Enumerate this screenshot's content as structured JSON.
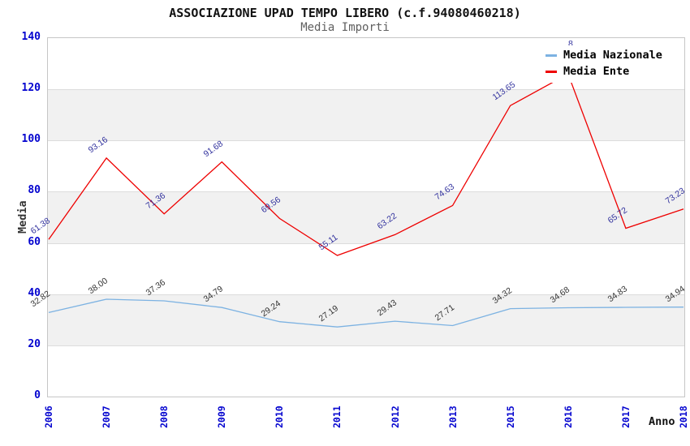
{
  "title": "ASSOCIAZIONE UPAD TEMPO LIBERO (c.f.94080460218)",
  "subtitle": "Media Importi",
  "axes": {
    "y_title": "Media",
    "x_title": "Anno",
    "y_ticks": [
      0,
      20,
      40,
      60,
      80,
      100,
      120,
      140
    ],
    "x_ticks": [
      "2006",
      "2007",
      "2008",
      "2009",
      "2010",
      "2011",
      "2012",
      "2013",
      "2015",
      "2016",
      "2017",
      "2018"
    ],
    "tick_color": "#0404cf"
  },
  "legend": {
    "items": [
      {
        "label": "Media Nazionale",
        "color": "#7cb2e2"
      },
      {
        "label": "Media Ente",
        "color": "#ee0000"
      }
    ]
  },
  "clipped_label_fragment": "8",
  "chart_data": {
    "type": "line",
    "title": "ASSOCIAZIONE UPAD TEMPO LIBERO (c.f.94080460218)",
    "subtitle": "Media Importi",
    "xlabel": "Anno",
    "ylabel": "Media",
    "ylim": [
      0,
      140
    ],
    "grid": "horizontal gridlines every 20 with alternating light-gray bands (20-40, 60-80, 100-120)",
    "legend_position": "top-right inside plot, opaque white background",
    "x": [
      "2006",
      "2007",
      "2008",
      "2009",
      "2010",
      "2011",
      "2012",
      "2013",
      "2015",
      "2016",
      "2017",
      "2018"
    ],
    "series": [
      {
        "name": "Media Nazionale",
        "color": "#7cb2e2",
        "label_color": "#333333",
        "values": [
          32.82,
          38.0,
          37.36,
          34.79,
          29.24,
          27.19,
          29.43,
          27.71,
          34.32,
          34.68,
          34.83,
          34.94
        ],
        "labels": [
          "32.82",
          "38.00",
          "37.36",
          "34.79",
          "29.24",
          "27.19",
          "29.43",
          "27.71",
          "34.32",
          "34.68",
          "34.83",
          "34.94"
        ]
      },
      {
        "name": "Media Ente",
        "color": "#ee0000",
        "label_color": "#32329e",
        "values": [
          61.38,
          93.16,
          71.36,
          91.68,
          69.56,
          55.11,
          63.22,
          74.63,
          113.65,
          126.0,
          65.72,
          73.23
        ],
        "labels": [
          "61.38",
          "93.16",
          "71.36",
          "91.68",
          "69.56",
          "55.11",
          "63.22",
          "74.63",
          "113.65",
          "",
          "65.72",
          "73.23"
        ]
      }
    ],
    "notes": "The 2016 Media Ente peak and its value label are hidden behind the legend box; 126.0 is estimated from line slopes."
  }
}
